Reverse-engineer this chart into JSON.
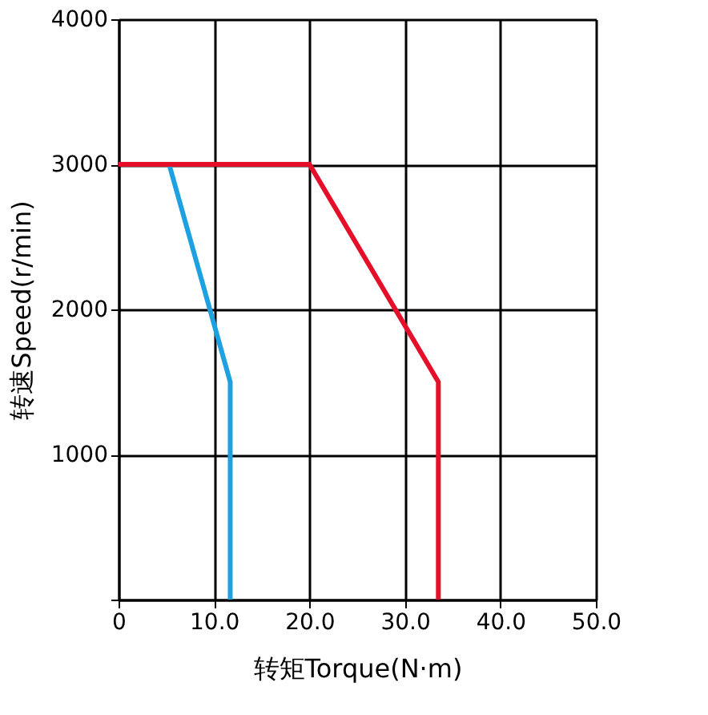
{
  "chart_data": {
    "type": "line",
    "xlabel": "转矩Torque(N·m)",
    "ylabel": "转速Speed(r/min)",
    "xlim": [
      0,
      50
    ],
    "ylim": [
      0,
      4000
    ],
    "xticks": [
      0,
      {
        "value": 10,
        "label": "10.0"
      },
      {
        "value": 20,
        "label": "20.0"
      },
      {
        "value": 30,
        "label": "30.0"
      },
      {
        "value": 40,
        "label": "40.0"
      },
      {
        "value": 50,
        "label": "50.0"
      }
    ],
    "yticks": [
      {
        "value": 0,
        "label": null
      },
      1000,
      2000,
      3000,
      4000
    ],
    "grid": true,
    "marker": "none",
    "line_style": "solid",
    "series": [
      {
        "color": "#1da1e0",
        "x": [
          5.3,
          11.7,
          11.7
        ],
        "values": [
          3000,
          1500,
          0
        ]
      },
      {
        "color": "#e60f2a",
        "x": [
          0,
          20,
          33.5,
          33.5
        ],
        "values": [
          3000,
          3000,
          1500,
          0
        ]
      }
    ]
  }
}
